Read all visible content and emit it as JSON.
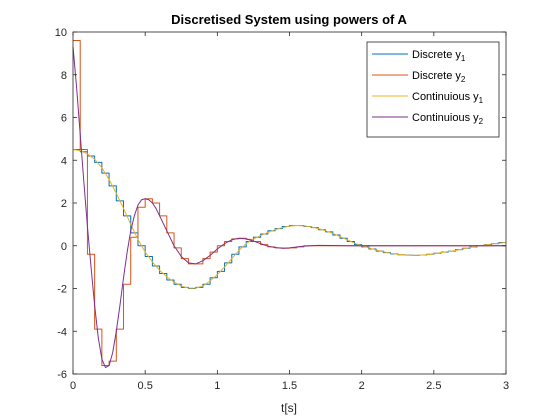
{
  "chart_data": {
    "type": "line",
    "title": "Discretised System using powers of A",
    "xlabel": "t[s]",
    "ylabel": "",
    "xlim": [
      0,
      3
    ],
    "ylim": [
      -6,
      10
    ],
    "xticks": [
      0,
      0.5,
      1,
      1.5,
      2,
      2.5,
      3
    ],
    "xtick_labels": [
      "0",
      "0.5",
      "1",
      "1.5",
      "2",
      "2.5",
      "3"
    ],
    "yticks": [
      -6,
      -4,
      -2,
      0,
      2,
      4,
      6,
      8,
      10
    ],
    "ytick_labels": [
      "-6",
      "-4",
      "-2",
      "0",
      "2",
      "4",
      "6",
      "8",
      "10"
    ],
    "grid": false,
    "legend": {
      "location": "top-right",
      "entries": [
        {
          "base": "Discrete y",
          "sub": "1"
        },
        {
          "base": "Discrete y",
          "sub": "2"
        },
        {
          "base": "Continuious y",
          "sub": "1"
        },
        {
          "base": "Continuious y",
          "sub": "2"
        }
      ]
    },
    "series": [
      {
        "legend_index": 0,
        "style": "stairs",
        "color": "#0072BD",
        "x": [
          0,
          0.05,
          0.1,
          0.15,
          0.2,
          0.25,
          0.3,
          0.35,
          0.4,
          0.45,
          0.5,
          0.55,
          0.6,
          0.65,
          0.7,
          0.75,
          0.8,
          0.85,
          0.9,
          0.95,
          1,
          1.05,
          1.1,
          1.15,
          1.2,
          1.25,
          1.3,
          1.35,
          1.4,
          1.45,
          1.5,
          1.55,
          1.6,
          1.65,
          1.7,
          1.75,
          1.8,
          1.85,
          1.9,
          1.95,
          2,
          2.05,
          2.1,
          2.15,
          2.2,
          2.25,
          2.3,
          2.35,
          2.4,
          2.45,
          2.5,
          2.55,
          2.6,
          2.65,
          2.7,
          2.75,
          2.8,
          2.85,
          2.9,
          2.95
        ],
        "y": [
          4.5,
          4.4,
          4.2,
          3.9,
          3.4,
          2.8,
          2.1,
          1.4,
          0.6,
          0,
          -0.5,
          -0.95,
          -1.3,
          -1.6,
          -1.8,
          -1.95,
          -2.0,
          -1.95,
          -1.8,
          -1.5,
          -1.2,
          -0.8,
          -0.4,
          -0.05,
          0.2,
          0.4,
          0.55,
          0.7,
          0.8,
          0.9,
          0.95,
          0.95,
          0.9,
          0.85,
          0.75,
          0.65,
          0.5,
          0.35,
          0.2,
          0.05,
          -0.05,
          -0.15,
          -0.25,
          -0.32,
          -0.38,
          -0.42,
          -0.44,
          -0.45,
          -0.43,
          -0.4,
          -0.35,
          -0.3,
          -0.25,
          -0.18,
          -0.12,
          -0.05,
          0,
          0.05,
          0.1,
          0.15
        ]
      },
      {
        "legend_index": 1,
        "style": "stairs",
        "color": "#D95319",
        "x": [
          0,
          0.05,
          0.1,
          0.15,
          0.2,
          0.25,
          0.3,
          0.35,
          0.4,
          0.45,
          0.5,
          0.55,
          0.6,
          0.65,
          0.7,
          0.75,
          0.8,
          0.85,
          0.9,
          0.95,
          1,
          1.05,
          1.1,
          1.15,
          1.2,
          1.25,
          1.3,
          1.35,
          1.4,
          1.45,
          1.5,
          1.55,
          1.6,
          1.65,
          1.7,
          1.75,
          1.8,
          1.85,
          1.9,
          1.95,
          2,
          2.05,
          2.1,
          2.15,
          2.2,
          2.25,
          2.3,
          2.35,
          2.4,
          2.45,
          2.5,
          2.55,
          2.6,
          2.65,
          2.7,
          2.75,
          2.8,
          2.85,
          2.9,
          2.95
        ],
        "y": [
          9.6,
          4.5,
          -0.4,
          -3.9,
          -5.6,
          -5.4,
          -3.9,
          -1.8,
          0.4,
          1.8,
          2.2,
          2.0,
          1.4,
          0.6,
          -0.1,
          -0.6,
          -0.85,
          -0.85,
          -0.6,
          -0.3,
          0,
          0.2,
          0.32,
          0.35,
          0.3,
          0.2,
          0.05,
          -0.05,
          -0.1,
          -0.12,
          -0.1,
          -0.05,
          0,
          0,
          0,
          0,
          0,
          0,
          0,
          0,
          0,
          0,
          0,
          0,
          0,
          0,
          0,
          0,
          0,
          0,
          0,
          0,
          0,
          0,
          0,
          0,
          0,
          0,
          0,
          0
        ]
      },
      {
        "legend_index": 2,
        "style": "line",
        "color": "#EDB120",
        "x": [
          0,
          0.05,
          0.1,
          0.15,
          0.2,
          0.25,
          0.3,
          0.35,
          0.4,
          0.45,
          0.5,
          0.55,
          0.6,
          0.65,
          0.7,
          0.75,
          0.8,
          0.85,
          0.9,
          0.95,
          1,
          1.05,
          1.1,
          1.15,
          1.2,
          1.25,
          1.3,
          1.35,
          1.4,
          1.45,
          1.5,
          1.55,
          1.6,
          1.65,
          1.7,
          1.75,
          1.8,
          1.85,
          1.9,
          1.95,
          2,
          2.05,
          2.1,
          2.15,
          2.2,
          2.25,
          2.3,
          2.35,
          2.4,
          2.45,
          2.5,
          2.55,
          2.6,
          2.65,
          2.7,
          2.75,
          2.8,
          2.85,
          2.9,
          2.95,
          3
        ],
        "y": [
          4.5,
          4.45,
          4.3,
          4.05,
          3.65,
          3.1,
          2.45,
          1.75,
          1.0,
          0.3,
          -0.3,
          -0.75,
          -1.15,
          -1.45,
          -1.7,
          -1.88,
          -1.98,
          -1.98,
          -1.88,
          -1.65,
          -1.35,
          -1.0,
          -0.6,
          -0.22,
          0.1,
          0.32,
          0.48,
          0.62,
          0.75,
          0.85,
          0.92,
          0.95,
          0.93,
          0.88,
          0.8,
          0.7,
          0.58,
          0.43,
          0.28,
          0.12,
          0,
          -0.1,
          -0.2,
          -0.28,
          -0.35,
          -0.4,
          -0.43,
          -0.45,
          -0.44,
          -0.42,
          -0.38,
          -0.32,
          -0.27,
          -0.22,
          -0.15,
          -0.08,
          -0.02,
          0.03,
          0.08,
          0.12,
          0.15
        ]
      },
      {
        "legend_index": 3,
        "style": "line",
        "color": "#7E2F8E",
        "x": [
          0,
          0.025,
          0.05,
          0.075,
          0.1,
          0.125,
          0.15,
          0.175,
          0.2,
          0.225,
          0.25,
          0.275,
          0.3,
          0.325,
          0.35,
          0.375,
          0.4,
          0.425,
          0.45,
          0.475,
          0.5,
          0.525,
          0.55,
          0.575,
          0.6,
          0.65,
          0.7,
          0.75,
          0.8,
          0.85,
          0.9,
          0.95,
          1,
          1.05,
          1.1,
          1.15,
          1.2,
          1.25,
          1.3,
          1.35,
          1.4,
          1.45,
          1.5,
          1.55,
          1.6,
          1.7,
          1.8,
          1.9,
          2,
          2.2,
          2.4,
          2.6,
          2.8,
          3
        ],
        "y": [
          9.3,
          7.4,
          5.2,
          3.0,
          0.9,
          -1.0,
          -2.8,
          -4.3,
          -5.3,
          -5.7,
          -5.6,
          -5.0,
          -4.0,
          -2.8,
          -1.5,
          -0.3,
          0.7,
          1.4,
          1.9,
          2.15,
          2.2,
          2.15,
          2.0,
          1.75,
          1.4,
          0.7,
          0.0,
          -0.5,
          -0.8,
          -0.85,
          -0.7,
          -0.45,
          -0.15,
          0.1,
          0.28,
          0.35,
          0.32,
          0.22,
          0.1,
          -0.02,
          -0.08,
          -0.12,
          -0.1,
          -0.06,
          -0.02,
          0.02,
          0.01,
          0,
          0,
          0,
          0,
          0,
          0,
          0
        ]
      }
    ]
  }
}
